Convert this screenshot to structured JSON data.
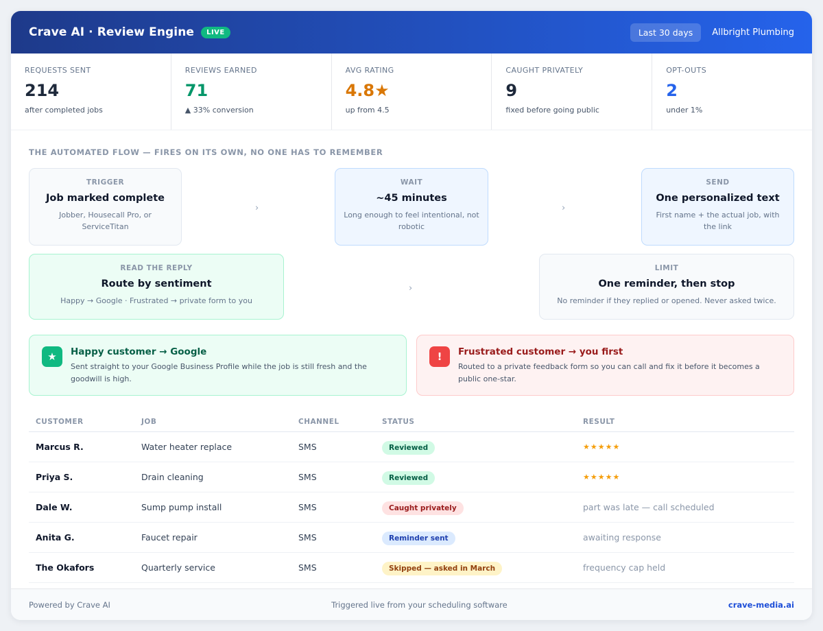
{
  "header": {
    "title": "Crave AI · Review Engine",
    "live_badge": "LIVE",
    "period": "Last 30 days",
    "business": "Allbright Plumbing"
  },
  "stats": [
    {
      "label": "REQUESTS SENT",
      "value": "214",
      "sub": "after completed jobs",
      "color": "#1e293b"
    },
    {
      "label": "REVIEWS EARNED",
      "value": "71",
      "sub": "▲ 33% conversion",
      "color": "#059669"
    },
    {
      "label": "AVG RATING",
      "value": "4.8★",
      "sub": "up from 4.5",
      "color": "#d97706"
    },
    {
      "label": "CAUGHT PRIVATELY",
      "value": "9",
      "sub": "fixed before going public",
      "color": "#1e293b"
    },
    {
      "label": "OPT-OUTS",
      "value": "2",
      "sub": "under 1%",
      "color": "#2563eb"
    }
  ],
  "flow": {
    "title": "THE AUTOMATED FLOW — FIRES ON ITS OWN, NO ONE HAS TO REMEMBER",
    "arrow": "›",
    "steps": [
      {
        "kicker": "TRIGGER",
        "title": "Job marked complete",
        "desc": "Jobber, Housecall Pro, or ServiceTitan"
      },
      {
        "kicker": "WAIT",
        "title": "~45 minutes",
        "desc": "Long enough to feel intentional, not robotic"
      },
      {
        "kicker": "SEND",
        "title": "One personalized text",
        "desc": "First name + the actual job, with the link"
      },
      {
        "kicker": "READ THE REPLY",
        "title": "Route by sentiment",
        "desc": "Happy → Google · Frustrated → private form to you"
      },
      {
        "kicker": "LIMIT",
        "title": "One reminder, then stop",
        "desc": "No reminder if they replied or opened. Never asked twice."
      }
    ]
  },
  "outcomes": {
    "happy": {
      "icon": "★",
      "title": "Happy customer → Google",
      "desc": "Sent straight to your Google Business Profile while the job is still fresh and the goodwill is high."
    },
    "frustrated": {
      "icon": "!",
      "title": "Frustrated customer → you first",
      "desc": "Routed to a private feedback form so you can call and fix it before it becomes a public one-star."
    }
  },
  "table": {
    "headers": [
      "CUSTOMER",
      "JOB",
      "CHANNEL",
      "STATUS",
      "RESULT"
    ],
    "rows": [
      {
        "customer": "Marcus R.",
        "job": "Water heater replace",
        "channel": "SMS",
        "status": "Reviewed",
        "result": "★★★★★"
      },
      {
        "customer": "Priya S.",
        "job": "Drain cleaning",
        "channel": "SMS",
        "status": "Reviewed",
        "result": "★★★★★"
      },
      {
        "customer": "Dale W.",
        "job": "Sump pump install",
        "channel": "SMS",
        "status": "Caught privately",
        "result": "part was late — call scheduled"
      },
      {
        "customer": "Anita G.",
        "job": "Faucet repair",
        "channel": "SMS",
        "status": "Reminder sent",
        "result": "awaiting response"
      },
      {
        "customer": "The Okafors",
        "job": "Quarterly service",
        "channel": "SMS",
        "status": "Skipped — asked in March",
        "result": "frequency cap held"
      }
    ]
  },
  "footer": {
    "left": "Powered by Crave AI",
    "center": "Triggered live from your scheduling software",
    "right": "crave-media.ai"
  },
  "colors": {
    "brand_start": "#1e3a8a",
    "brand_end": "#2563eb",
    "live": "#10b981",
    "star": "#f59e0b"
  }
}
